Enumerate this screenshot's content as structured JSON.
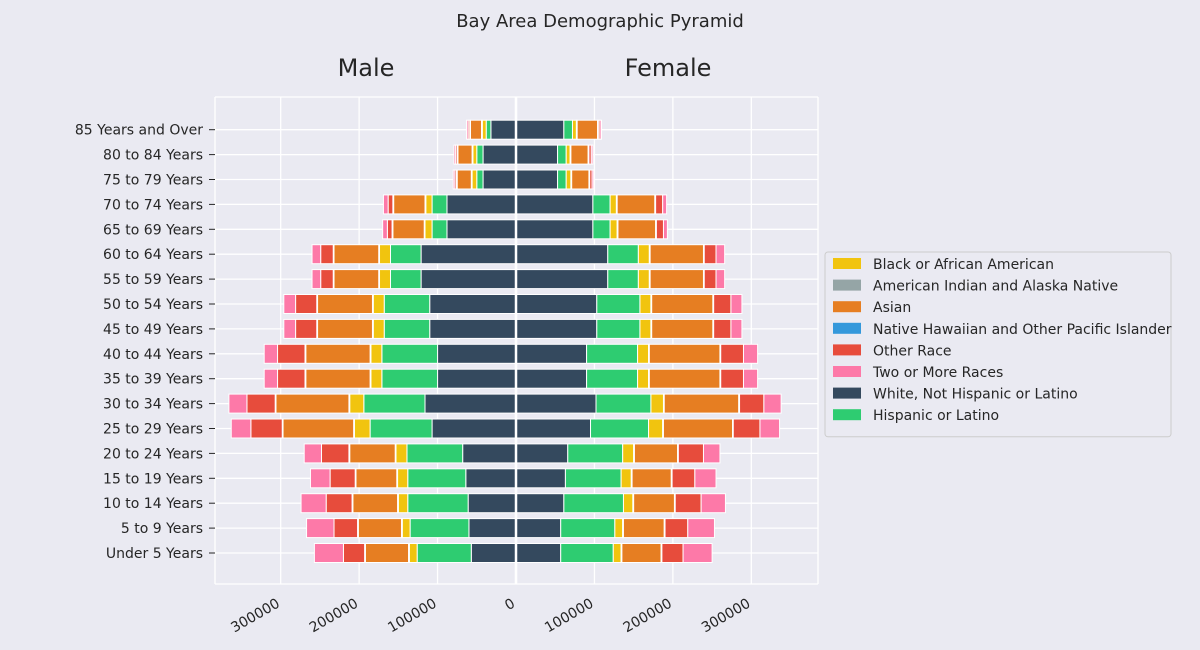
{
  "chart_data": {
    "type": "bar",
    "orientation": "horizontal-pyramid",
    "title": "Bay Area Demographic Pyramid",
    "left_panel_title": "Male",
    "right_panel_title": "Female",
    "xlim": [
      -385000,
      385000
    ],
    "xticks": [
      -300000,
      -200000,
      -100000,
      0,
      100000,
      200000,
      300000
    ],
    "xtick_labels": [
      "300000",
      "200000",
      "100000",
      "0",
      "100000",
      "200000",
      "300000"
    ],
    "grid": true,
    "legend_position": "right",
    "categories": [
      "Under 5 Years",
      "5 to 9 Years",
      "10 to 14 Years",
      "15 to 19 Years",
      "20 to 24 Years",
      "25 to 29 Years",
      "30 to 34 Years",
      "35 to 39 Years",
      "40 to 44 Years",
      "45 to 49 Years",
      "50 to 54 Years",
      "55 to 59 Years",
      "60 to 64 Years",
      "65 to 69 Years",
      "70 to 74 Years",
      "75 to 79 Years",
      "80 to 84 Years",
      "85 Years and Over"
    ],
    "stack_order": [
      "White, Not Hispanic or Latino",
      "Hispanic or Latino",
      "Black or African American",
      "American Indian and Alaska Native",
      "Asian",
      "Native Hawaiian and Other Pacific Islander",
      "Other Race",
      "Two or More Races"
    ],
    "series": [
      {
        "name": "Black or African American",
        "color": "#f1c40f",
        "male": [
          10000,
          10000,
          12000,
          13000,
          14000,
          20000,
          18000,
          14000,
          14000,
          14000,
          14000,
          14000,
          14000,
          9000,
          8000,
          6000,
          5000,
          5000
        ],
        "female": [
          10000,
          10000,
          12000,
          13000,
          14000,
          18000,
          16000,
          14000,
          14000,
          14000,
          14000,
          14000,
          14000,
          9000,
          8000,
          6000,
          5000,
          5000
        ]
      },
      {
        "name": "American Indian and Alaska Native",
        "color": "#95a5a6",
        "male": [
          1000,
          1000,
          1000,
          1000,
          1000,
          1000,
          1000,
          1000,
          1000,
          1000,
          1000,
          1000,
          1000,
          1000,
          1000,
          1000,
          1000,
          1000
        ],
        "female": [
          1000,
          1000,
          1000,
          1000,
          1000,
          1000,
          1000,
          1000,
          1000,
          1000,
          1000,
          1000,
          1000,
          1000,
          1000,
          1000,
          1000,
          1000
        ]
      },
      {
        "name": "Asian",
        "color": "#e67e22",
        "male": [
          55000,
          55000,
          57000,
          52000,
          58000,
          90000,
          93000,
          82000,
          82000,
          70000,
          70000,
          57000,
          57000,
          40000,
          40000,
          18000,
          18000,
          14000
        ],
        "female": [
          50000,
          52000,
          52000,
          50000,
          55000,
          88000,
          95000,
          90000,
          90000,
          78000,
          78000,
          68000,
          68000,
          48000,
          48000,
          22000,
          22000,
          26000
        ]
      },
      {
        "name": "Native Hawaiian and Other Pacific Islander",
        "color": "#3498db",
        "male": [
          1000,
          1000,
          1000,
          1000,
          1000,
          1000,
          1000,
          1000,
          1000,
          1000,
          1000,
          1000,
          1000,
          1000,
          1000,
          1000,
          1000,
          1000
        ],
        "female": [
          1000,
          1000,
          1000,
          1000,
          1000,
          1000,
          1000,
          1000,
          1000,
          1000,
          1000,
          1000,
          1000,
          1000,
          1000,
          1000,
          1000,
          1000
        ]
      },
      {
        "name": "Other Race",
        "color": "#e74c3c",
        "male": [
          27000,
          30000,
          33000,
          32000,
          35000,
          40000,
          36000,
          35000,
          35000,
          27000,
          27000,
          16000,
          16000,
          6000,
          6000,
          2000,
          2000,
          2000
        ],
        "female": [
          27000,
          29000,
          33000,
          29000,
          32000,
          34000,
          31000,
          29000,
          29000,
          22000,
          22000,
          15000,
          15000,
          9000,
          9000,
          3000,
          3000,
          2000
        ]
      },
      {
        "name": "Two or More Races",
        "color": "#fd79a8",
        "male": [
          37000,
          35000,
          32000,
          25000,
          22000,
          25000,
          23000,
          17000,
          17000,
          15000,
          15000,
          11000,
          11000,
          6000,
          6000,
          2000,
          2000,
          2000
        ],
        "female": [
          37000,
          34000,
          31000,
          27000,
          21000,
          25000,
          22000,
          18000,
          18000,
          14000,
          14000,
          11000,
          11000,
          5000,
          5000,
          2000,
          2000,
          2000
        ]
      },
      {
        "name": "White, Not Hispanic or Latino",
        "color": "#34495e",
        "male": [
          57000,
          60000,
          61000,
          64000,
          68000,
          107000,
          116000,
          100000,
          100000,
          110000,
          110000,
          121000,
          121000,
          88000,
          88000,
          42000,
          42000,
          32000
        ],
        "female": [
          57000,
          57000,
          61000,
          63000,
          66000,
          95000,
          102000,
          90000,
          90000,
          103000,
          103000,
          117000,
          117000,
          98000,
          98000,
          53000,
          53000,
          61000
        ]
      },
      {
        "name": "Hispanic or Latino",
        "color": "#2ecc71",
        "male": [
          69000,
          75000,
          77000,
          74000,
          71000,
          79000,
          78000,
          71000,
          71000,
          58000,
          58000,
          39000,
          39000,
          19000,
          19000,
          8000,
          8000,
          6000
        ],
        "female": [
          67000,
          69000,
          76000,
          71000,
          70000,
          74000,
          70000,
          65000,
          65000,
          55000,
          55000,
          39000,
          39000,
          22000,
          22000,
          11000,
          11000,
          11000
        ]
      }
    ],
    "legend_order": [
      "Black or African American",
      "American Indian and Alaska Native",
      "Asian",
      "Native Hawaiian and Other Pacific Islander",
      "Other Race",
      "Two or More Races",
      "White, Not Hispanic or Latino",
      "Hispanic or Latino"
    ]
  }
}
